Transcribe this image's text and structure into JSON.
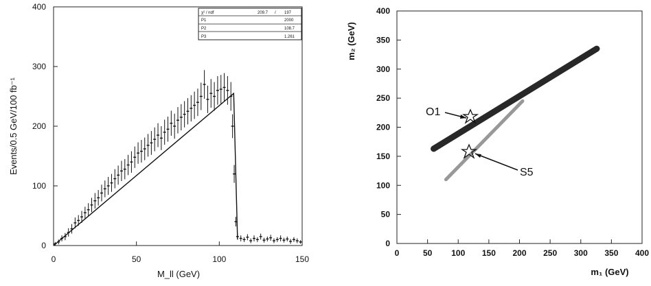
{
  "chart_data": [
    {
      "type": "scatter",
      "title": "",
      "xlabel": "M_ll (GeV)",
      "ylabel": "Events/0.5 GeV/100 fb⁻¹",
      "xlim": [
        0,
        150
      ],
      "ylim": [
        0,
        400
      ],
      "xticks": [
        "0",
        "50",
        "100",
        "150"
      ],
      "yticks": [
        "0",
        "100",
        "200",
        "300",
        "400"
      ],
      "grid": false,
      "fit_box": {
        "header": [
          "χ² / ndf",
          "209.7",
          "/",
          "197"
        ],
        "params": [
          {
            "name": "P1",
            "value": "2000"
          },
          {
            "name": "P2",
            "value": "108.7"
          },
          {
            "name": "P3",
            "value": "1.261"
          }
        ]
      },
      "series": [
        {
          "description_points": "M_ll histogram with error bars",
          "x": [
            1,
            3,
            5,
            7,
            9,
            11,
            13,
            15,
            17,
            19,
            21,
            23,
            25,
            27,
            29,
            31,
            33,
            35,
            37,
            39,
            41,
            43,
            45,
            47,
            49,
            51,
            53,
            55,
            57,
            59,
            61,
            63,
            65,
            67,
            69,
            71,
            73,
            75,
            77,
            79,
            81,
            83,
            85,
            87,
            89,
            91,
            93,
            95,
            97,
            99,
            101,
            103,
            105,
            107,
            108,
            109,
            110,
            111,
            113,
            115,
            117,
            119,
            121,
            123,
            125,
            127,
            129,
            131,
            133,
            135,
            137,
            139,
            141,
            143,
            145,
            147,
            149
          ],
          "y": [
            3,
            6,
            12,
            15,
            22,
            28,
            38,
            42,
            48,
            55,
            60,
            68,
            75,
            80,
            88,
            95,
            100,
            105,
            112,
            118,
            125,
            128,
            135,
            140,
            148,
            155,
            158,
            162,
            168,
            172,
            178,
            185,
            180,
            190,
            195,
            205,
            200,
            210,
            215,
            220,
            225,
            230,
            235,
            240,
            250,
            270,
            245,
            255,
            250,
            260,
            262,
            265,
            260,
            250,
            200,
            120,
            40,
            15,
            12,
            10,
            14,
            8,
            12,
            10,
            15,
            9,
            11,
            13,
            8,
            10,
            12,
            9,
            11,
            7,
            10,
            8,
            6
          ],
          "err": [
            3,
            4,
            5,
            6,
            7,
            8,
            9,
            9,
            10,
            10,
            11,
            12,
            13,
            13,
            14,
            14,
            15,
            15,
            16,
            16,
            17,
            17,
            17,
            18,
            18,
            18,
            19,
            19,
            19,
            20,
            20,
            20,
            20,
            21,
            21,
            21,
            21,
            22,
            22,
            22,
            22,
            22,
            23,
            23,
            23,
            24,
            23,
            24,
            24,
            24,
            24,
            24,
            24,
            24,
            20,
            15,
            8,
            5,
            5,
            4,
            5,
            4,
            5,
            4,
            5,
            4,
            4,
            5,
            4,
            4,
            5,
            4,
            4,
            4,
            4,
            4,
            3
          ]
        },
        {
          "description_points": "fit line",
          "x": [
            0,
            108.7,
            111
          ],
          "y": [
            0,
            255,
            10
          ]
        }
      ]
    },
    {
      "type": "scatter",
      "title": "",
      "xlabel": "m₁ (GeV)",
      "ylabel": "m₂ (GeV)",
      "xlim": [
        0,
        400
      ],
      "ylim": [
        0,
        400
      ],
      "xticks": [
        "0",
        "50",
        "100",
        "150",
        "200",
        "250",
        "300",
        "350",
        "400"
      ],
      "yticks": [
        "0",
        "50",
        "100",
        "150",
        "200",
        "250",
        "300",
        "350",
        "400"
      ],
      "grid": false,
      "annotations": [
        {
          "text": "O1",
          "target": [
            126,
            217
          ]
        },
        {
          "text": "S5",
          "target": [
            122,
            160
          ]
        }
      ],
      "series": [
        {
          "name": "",
          "x": [
            60,
            326
          ],
          "y": [
            163,
            335
          ]
        },
        {
          "name": "",
          "x": [
            80,
            205
          ],
          "y": [
            110,
            245
          ]
        }
      ]
    }
  ]
}
